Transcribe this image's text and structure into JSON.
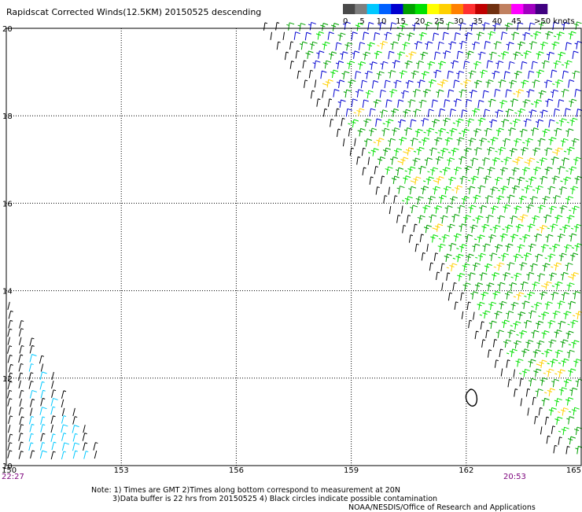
{
  "chart_data": {
    "type": "wind_barb_map",
    "title": "Rapidscat Corrected Winds(12.5KM) 20150525 descending",
    "x_ticks": [
      "150",
      "153",
      "156",
      "159",
      "162",
      "165"
    ],
    "y_ticks": [
      "10",
      "12",
      "14",
      "16",
      "18",
      "20"
    ],
    "xlim": [
      150,
      165
    ],
    "ylim": [
      10,
      20
    ],
    "grid": true,
    "time_labels": {
      "left": "22:27",
      "right": "20:53"
    },
    "time_label_color": "#7b007b",
    "legend": {
      "labels": [
        "0",
        "5",
        "10",
        "15",
        "20",
        "25",
        "30",
        "35",
        "40",
        "45",
        ">50 knots"
      ],
      "colors": [
        "#4a4a4a",
        "#7f7f7f",
        "#00c8ff",
        "#0060ff",
        "#0000d0",
        "#00a000",
        "#00e000",
        "#ffff00",
        "#ffd000",
        "#ff8000",
        "#ff3030",
        "#c00000",
        "#703010",
        "#c08060",
        "#ff00ff",
        "#a000c0",
        "#400080"
      ]
    },
    "swaths": [
      {
        "name": "descending swath east",
        "corners_lonlat": [
          [
            156.7,
            20
          ],
          [
            165,
            20
          ],
          [
            165,
            10
          ],
          [
            164.5,
            10
          ]
        ],
        "dominant_speed_knots": [
          10,
          20
        ]
      },
      {
        "name": "descending swath west",
        "corners_lonlat": [
          [
            150,
            13.8
          ],
          [
            150,
            10
          ],
          [
            152.6,
            10
          ]
        ],
        "dominant_speed_knots": [
          0,
          10
        ]
      }
    ]
  },
  "footer": {
    "note_line1": "Note: 1) Times are GMT 2)Times along bottom correspond to measurement at 20N",
    "note_line2": "3)Data buffer is 22 hrs from 20150525 4) Black circles indicate possible contamination",
    "credit": "NOAA/NESDIS/Office of Research and Applications"
  }
}
